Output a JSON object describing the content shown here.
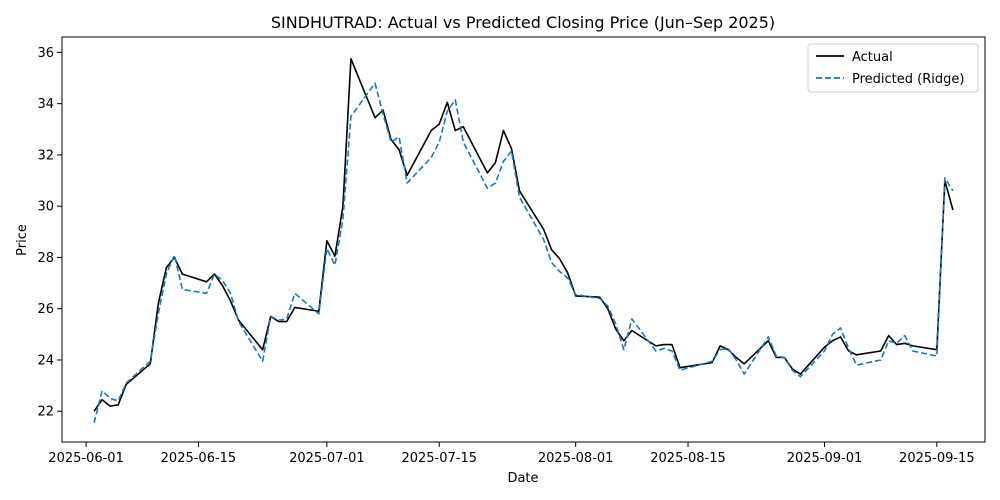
{
  "chart_data": {
    "type": "line",
    "title": "SINDHUTRAD: Actual vs Predicted Closing Price (Jun–Sep 2025)",
    "xlabel": "Date",
    "ylabel": "Price",
    "xlim": [
      "2025-05-29",
      "2025-09-21"
    ],
    "ylim": [
      20.8,
      36.6
    ],
    "x_ticks": [
      "2025-06-01",
      "2025-06-15",
      "2025-07-01",
      "2025-07-15",
      "2025-08-01",
      "2025-08-15",
      "2025-09-01",
      "2025-09-15"
    ],
    "y_ticks": [
      22,
      24,
      26,
      28,
      30,
      32,
      34,
      36
    ],
    "grid": false,
    "legend_position": "top-right",
    "x": [
      "2025-06-02",
      "2025-06-03",
      "2025-06-04",
      "2025-06-05",
      "2025-06-06",
      "2025-06-09",
      "2025-06-10",
      "2025-06-11",
      "2025-06-12",
      "2025-06-13",
      "2025-06-16",
      "2025-06-17",
      "2025-06-18",
      "2025-06-19",
      "2025-06-20",
      "2025-06-23",
      "2025-06-24",
      "2025-06-25",
      "2025-06-26",
      "2025-06-27",
      "2025-06-30",
      "2025-07-01",
      "2025-07-02",
      "2025-07-03",
      "2025-07-04",
      "2025-07-07",
      "2025-07-08",
      "2025-07-09",
      "2025-07-10",
      "2025-07-11",
      "2025-07-14",
      "2025-07-15",
      "2025-07-16",
      "2025-07-17",
      "2025-07-18",
      "2025-07-21",
      "2025-07-22",
      "2025-07-23",
      "2025-07-24",
      "2025-07-25",
      "2025-07-28",
      "2025-07-29",
      "2025-07-30",
      "2025-07-31",
      "2025-08-01",
      "2025-08-04",
      "2025-08-05",
      "2025-08-06",
      "2025-08-07",
      "2025-08-08",
      "2025-08-11",
      "2025-08-12",
      "2025-08-13",
      "2025-08-14",
      "2025-08-18",
      "2025-08-19",
      "2025-08-20",
      "2025-08-21",
      "2025-08-22",
      "2025-08-25",
      "2025-08-26",
      "2025-08-27",
      "2025-08-28",
      "2025-08-29",
      "2025-09-01",
      "2025-09-02",
      "2025-09-03",
      "2025-09-04",
      "2025-09-05",
      "2025-09-08",
      "2025-09-09",
      "2025-09-10",
      "2025-09-11",
      "2025-09-12",
      "2025-09-15",
      "2025-09-16",
      "2025-09-17"
    ],
    "series": [
      {
        "name": "Actual",
        "color": "#000000",
        "style": "solid",
        "values": [
          22.0,
          22.45,
          22.2,
          22.25,
          23.05,
          23.85,
          26.2,
          27.6,
          28.0,
          27.35,
          27.05,
          27.35,
          26.9,
          26.3,
          25.55,
          24.4,
          25.7,
          25.5,
          25.5,
          26.05,
          25.9,
          28.65,
          28.05,
          30.0,
          35.75,
          33.45,
          33.75,
          32.6,
          32.2,
          31.2,
          32.95,
          33.2,
          34.05,
          32.95,
          33.1,
          31.3,
          31.7,
          32.95,
          32.25,
          30.6,
          29.1,
          28.3,
          27.95,
          27.4,
          26.5,
          26.45,
          26.0,
          25.2,
          24.75,
          25.15,
          24.55,
          24.6,
          24.6,
          23.7,
          23.9,
          24.55,
          24.4,
          24.1,
          23.85,
          24.75,
          24.1,
          24.1,
          23.65,
          23.45,
          24.5,
          24.75,
          24.9,
          24.35,
          24.2,
          24.35,
          24.95,
          24.6,
          24.65,
          24.55,
          24.4,
          31.0,
          29.85
        ]
      },
      {
        "name": "Predicted (Ridge)",
        "color": "#1f77b4",
        "style": "dashed",
        "values": [
          21.55,
          22.8,
          22.5,
          22.4,
          23.1,
          23.95,
          25.8,
          27.35,
          28.1,
          26.75,
          26.6,
          27.35,
          27.1,
          26.6,
          25.5,
          23.95,
          25.7,
          25.55,
          25.6,
          26.6,
          25.8,
          28.35,
          27.7,
          29.5,
          33.5,
          34.8,
          33.6,
          32.5,
          32.7,
          30.9,
          31.9,
          32.5,
          33.7,
          34.15,
          32.5,
          30.7,
          30.9,
          31.75,
          32.15,
          30.35,
          28.7,
          27.8,
          27.45,
          27.2,
          26.55,
          26.4,
          26.1,
          25.4,
          24.4,
          25.6,
          24.35,
          24.45,
          24.35,
          23.6,
          23.95,
          24.4,
          24.45,
          24.0,
          23.45,
          24.9,
          24.15,
          24.1,
          23.6,
          23.35,
          24.35,
          25.0,
          25.25,
          24.45,
          23.8,
          24.0,
          24.75,
          24.65,
          24.95,
          24.35,
          24.15,
          31.1,
          30.6
        ]
      }
    ]
  }
}
